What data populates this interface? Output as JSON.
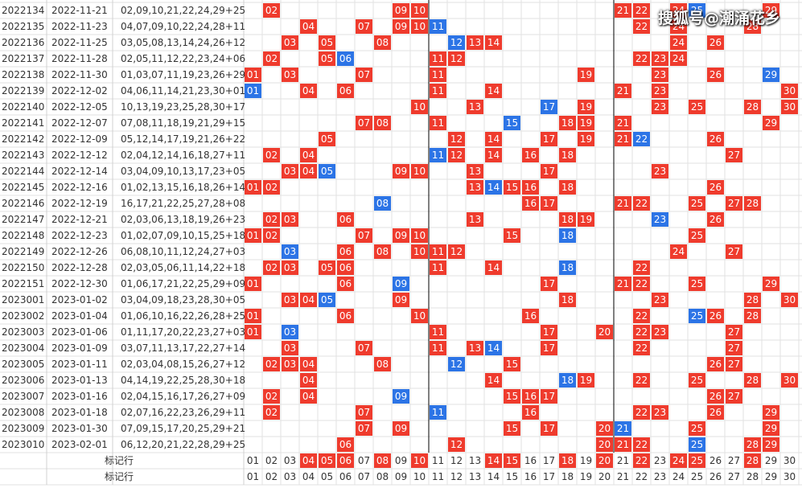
{
  "columns": [
    "01",
    "02",
    "03",
    "04",
    "05",
    "06",
    "07",
    "08",
    "09",
    "10",
    "11",
    "12",
    "13",
    "14",
    "15",
    "16",
    "17",
    "18",
    "19",
    "20",
    "21",
    "22",
    "23",
    "24",
    "25",
    "26",
    "27",
    "28",
    "29",
    "30"
  ],
  "rows": [
    {
      "issue": "2022134",
      "date": "2022-11-21",
      "draw": "02,09,10,21,22,24,29+25",
      "red": [
        "02",
        "09",
        "10",
        "21",
        "22",
        "24",
        "29"
      ],
      "blue": "25"
    },
    {
      "issue": "2022135",
      "date": "2022-11-23",
      "draw": "04,07,09,10,22,24,28+11",
      "red": [
        "04",
        "07",
        "09",
        "10",
        "22",
        "24",
        "28"
      ],
      "blue": "11"
    },
    {
      "issue": "2022136",
      "date": "2022-11-25",
      "draw": "03,05,08,13,14,24,26+12",
      "red": [
        "03",
        "05",
        "08",
        "13",
        "14",
        "24",
        "26"
      ],
      "blue": "12"
    },
    {
      "issue": "2022137",
      "date": "2022-11-28",
      "draw": "02,05,11,12,22,23,24+06",
      "red": [
        "02",
        "05",
        "11",
        "12",
        "22",
        "23",
        "24"
      ],
      "blue": "06"
    },
    {
      "issue": "2022138",
      "date": "2022-11-30",
      "draw": "01,03,07,11,19,23,26+29",
      "red": [
        "01",
        "03",
        "07",
        "11",
        "19",
        "23",
        "26"
      ],
      "blue": "29"
    },
    {
      "issue": "2022139",
      "date": "2022-12-02",
      "draw": "04,06,11,14,21,23,30+01",
      "red": [
        "04",
        "06",
        "11",
        "14",
        "21",
        "23",
        "30"
      ],
      "blue": "01"
    },
    {
      "issue": "2022140",
      "date": "2022-12-05",
      "draw": "10,13,19,23,25,28,30+17",
      "red": [
        "10",
        "13",
        "19",
        "23",
        "25",
        "28",
        "30"
      ],
      "blue": "17"
    },
    {
      "issue": "2022141",
      "date": "2022-12-07",
      "draw": "07,08,11,18,19,21,29+15",
      "red": [
        "07",
        "08",
        "11",
        "18",
        "19",
        "21",
        "29"
      ],
      "blue": "15"
    },
    {
      "issue": "2022142",
      "date": "2022-12-09",
      "draw": "05,12,14,17,19,21,26+22",
      "red": [
        "05",
        "12",
        "14",
        "17",
        "19",
        "21",
        "26"
      ],
      "blue": "22"
    },
    {
      "issue": "2022143",
      "date": "2022-12-12",
      "draw": "02,04,12,14,16,18,27+11",
      "red": [
        "02",
        "04",
        "12",
        "14",
        "16",
        "18",
        "27"
      ],
      "blue": "11"
    },
    {
      "issue": "2022144",
      "date": "2022-12-14",
      "draw": "03,04,09,10,13,17,23+05",
      "red": [
        "03",
        "04",
        "09",
        "10",
        "13",
        "17",
        "23"
      ],
      "blue": "05"
    },
    {
      "issue": "2022145",
      "date": "2022-12-16",
      "draw": "01,02,13,15,16,18,26+14",
      "red": [
        "01",
        "02",
        "13",
        "15",
        "16",
        "18",
        "26"
      ],
      "blue": "14"
    },
    {
      "issue": "2022146",
      "date": "2022-12-19",
      "draw": "16,17,21,22,25,27,28+08",
      "red": [
        "16",
        "17",
        "21",
        "22",
        "25",
        "27",
        "28"
      ],
      "blue": "08"
    },
    {
      "issue": "2022147",
      "date": "2022-12-21",
      "draw": "02,03,06,13,18,19,26+23",
      "red": [
        "02",
        "03",
        "06",
        "13",
        "18",
        "19",
        "26"
      ],
      "blue": "23"
    },
    {
      "issue": "2022148",
      "date": "2022-12-23",
      "draw": "01,02,07,09,10,15,25+18",
      "red": [
        "01",
        "02",
        "07",
        "09",
        "10",
        "15",
        "25"
      ],
      "blue": "18"
    },
    {
      "issue": "2022149",
      "date": "2022-12-26",
      "draw": "06,08,10,11,12,24,27+03",
      "red": [
        "06",
        "08",
        "10",
        "11",
        "12",
        "24",
        "27"
      ],
      "blue": "03"
    },
    {
      "issue": "2022150",
      "date": "2022-12-28",
      "draw": "02,03,05,06,11,14,22+18",
      "red": [
        "02",
        "03",
        "05",
        "06",
        "11",
        "14",
        "22"
      ],
      "blue": "18"
    },
    {
      "issue": "2022151",
      "date": "2022-12-30",
      "draw": "01,06,17,21,22,25,29+09",
      "red": [
        "01",
        "06",
        "17",
        "21",
        "22",
        "25",
        "29"
      ],
      "blue": "09"
    },
    {
      "issue": "2023001",
      "date": "2023-01-02",
      "draw": "03,04,09,18,23,28,30+05",
      "red": [
        "03",
        "04",
        "09",
        "18",
        "23",
        "28",
        "30"
      ],
      "blue": "05"
    },
    {
      "issue": "2023002",
      "date": "2023-01-04",
      "draw": "01,06,10,16,22,26,28+25",
      "red": [
        "01",
        "06",
        "10",
        "16",
        "22",
        "26",
        "28"
      ],
      "blue": "25"
    },
    {
      "issue": "2023003",
      "date": "2023-01-06",
      "draw": "01,11,17,20,22,23,27+03",
      "red": [
        "01",
        "11",
        "17",
        "20",
        "22",
        "23",
        "27"
      ],
      "blue": "03"
    },
    {
      "issue": "2023004",
      "date": "2023-01-09",
      "draw": "03,07,11,13,17,22,27+14",
      "red": [
        "03",
        "07",
        "11",
        "13",
        "17",
        "22",
        "27"
      ],
      "blue": "14"
    },
    {
      "issue": "2023005",
      "date": "2023-01-11",
      "draw": "02,03,04,08,15,26,27+12",
      "red": [
        "02",
        "03",
        "04",
        "08",
        "15",
        "26",
        "27"
      ],
      "blue": "12"
    },
    {
      "issue": "2023006",
      "date": "2023-01-13",
      "draw": "04,14,19,22,25,28,30+18",
      "red": [
        "04",
        "14",
        "19",
        "22",
        "25",
        "28",
        "30"
      ],
      "blue": "18"
    },
    {
      "issue": "2023007",
      "date": "2023-01-16",
      "draw": "02,04,15,16,17,26,27+09",
      "red": [
        "02",
        "04",
        "15",
        "16",
        "17",
        "26",
        "27"
      ],
      "blue": "09"
    },
    {
      "issue": "2023008",
      "date": "2023-01-18",
      "draw": "02,07,16,22,23,26,29+11",
      "red": [
        "02",
        "07",
        "16",
        "22",
        "23",
        "26",
        "29"
      ],
      "blue": "11"
    },
    {
      "issue": "2023009",
      "date": "2023-01-30",
      "draw": "07,09,15,17,20,25,29+21",
      "red": [
        "07",
        "09",
        "15",
        "17",
        "20",
        "25",
        "29"
      ],
      "blue": "21"
    },
    {
      "issue": "2023010",
      "date": "2023-02-01",
      "draw": "06,12,20,21,22,28,29+25",
      "red": [
        "06",
        "12",
        "20",
        "21",
        "22",
        "28",
        "29"
      ],
      "blue": "25"
    }
  ],
  "marker_rows": [
    {
      "label": "标记行",
      "highlighted": [
        "04",
        "05",
        "06",
        "08",
        "10",
        "14",
        "15",
        "18",
        "20",
        "22",
        "24",
        "25",
        "28"
      ]
    },
    {
      "label": "标记行",
      "highlighted": []
    }
  ],
  "watermark": "搜狐号@潮涌花乡"
}
